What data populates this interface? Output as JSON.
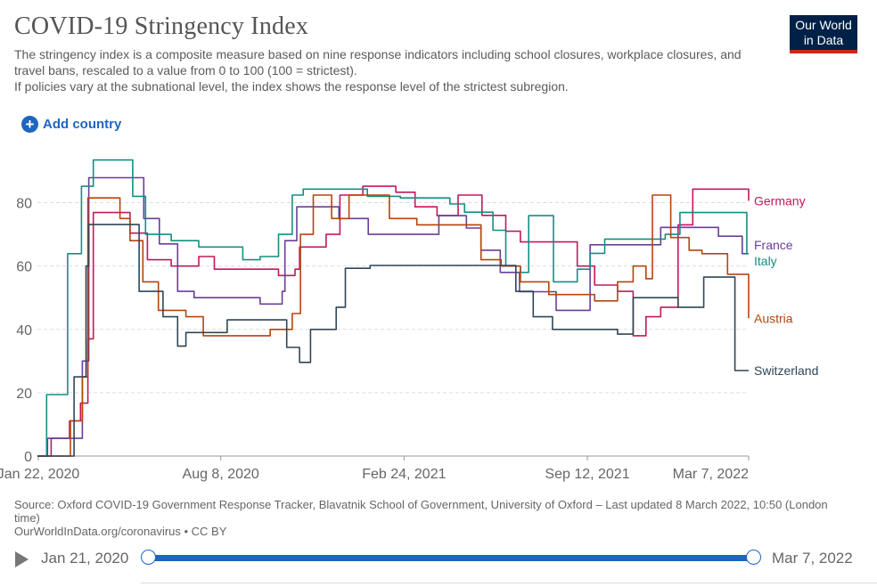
{
  "header": {
    "title": "COVID-19 Stringency Index",
    "subtitle_line1": "The stringency index is a composite measure based on nine response indicators including school closures, workplace closures, and travel bans, rescaled to a value from 0 to 100 (100 = strictest).",
    "subtitle_line2": "If policies vary at the subnational level, the index shows the response level of the strictest subregion.",
    "logo_line1": "Our World",
    "logo_line2": "in Data"
  },
  "controls": {
    "add_country_label": "Add country"
  },
  "colors": {
    "Germany": "#c2185b",
    "France": "#6a3d9a",
    "Italy": "#148f84",
    "Austria": "#b5450b",
    "Switzerland": "#2f4658",
    "grid": "#dddddd",
    "accent": "#1d65c0"
  },
  "chart_data": {
    "type": "line",
    "title": "COVID-19 Stringency Index",
    "xlabel": "",
    "ylabel": "",
    "xlim": [
      "2020-01-21",
      "2022-03-07"
    ],
    "ylim": [
      0,
      90
    ],
    "yticks": [
      0,
      20,
      40,
      60,
      80
    ],
    "xticks": [
      "Jan 22, 2020",
      "Aug 8, 2020",
      "Feb 24, 2021",
      "Sep 12, 2021",
      "Mar 7, 2022"
    ],
    "xtick_dates": [
      "2020-01-22",
      "2020-08-08",
      "2021-02-24",
      "2021-09-12",
      "2022-03-07"
    ],
    "grid": true,
    "series": [
      {
        "name": "Germany",
        "points": [
          [
            "2020-01-21",
            0
          ],
          [
            "2020-02-05",
            5.6
          ],
          [
            "2020-02-25",
            11.1
          ],
          [
            "2020-03-08",
            16.7
          ],
          [
            "2020-03-16",
            37
          ],
          [
            "2020-03-22",
            76.9
          ],
          [
            "2020-04-20",
            76.9
          ],
          [
            "2020-05-01",
            70.4
          ],
          [
            "2020-05-20",
            62
          ],
          [
            "2020-06-15",
            60
          ],
          [
            "2020-07-15",
            63
          ],
          [
            "2020-08-01",
            59
          ],
          [
            "2020-09-15",
            59
          ],
          [
            "2020-10-10",
            57
          ],
          [
            "2020-10-28",
            59
          ],
          [
            "2020-11-02",
            66
          ],
          [
            "2020-12-01",
            70
          ],
          [
            "2020-12-16",
            82.4
          ],
          [
            "2021-01-10",
            85.2
          ],
          [
            "2021-02-15",
            83.3
          ],
          [
            "2021-03-08",
            78.7
          ],
          [
            "2021-04-01",
            75.9
          ],
          [
            "2021-04-24",
            82.4
          ],
          [
            "2021-05-20",
            76
          ],
          [
            "2021-06-15",
            71
          ],
          [
            "2021-07-01",
            67.6
          ],
          [
            "2021-07-30",
            67.6
          ],
          [
            "2021-09-01",
            60
          ],
          [
            "2021-09-20",
            54
          ],
          [
            "2021-10-15",
            52
          ],
          [
            "2021-11-01",
            38
          ],
          [
            "2021-11-15",
            44
          ],
          [
            "2021-12-01",
            47
          ],
          [
            "2021-12-20",
            73
          ],
          [
            "2022-01-05",
            84.3
          ],
          [
            "2022-03-01",
            84.3
          ],
          [
            "2022-03-07",
            80.6
          ]
        ]
      },
      {
        "name": "France",
        "points": [
          [
            "2020-01-21",
            0
          ],
          [
            "2020-02-01",
            5.6
          ],
          [
            "2020-03-01",
            5.6
          ],
          [
            "2020-03-10",
            30
          ],
          [
            "2020-03-17",
            87.9
          ],
          [
            "2020-05-11",
            87.9
          ],
          [
            "2020-05-16",
            75
          ],
          [
            "2020-06-02",
            67
          ],
          [
            "2020-06-22",
            52
          ],
          [
            "2020-07-10",
            50
          ],
          [
            "2020-09-01",
            50
          ],
          [
            "2020-09-20",
            48
          ],
          [
            "2020-10-14",
            52
          ],
          [
            "2020-10-17",
            68
          ],
          [
            "2020-10-30",
            78.7
          ],
          [
            "2020-12-15",
            75
          ],
          [
            "2021-01-16",
            70
          ],
          [
            "2021-03-20",
            70
          ],
          [
            "2021-04-03",
            75.9
          ],
          [
            "2021-05-03",
            72
          ],
          [
            "2021-05-19",
            65
          ],
          [
            "2021-06-09",
            58
          ],
          [
            "2021-06-30",
            51.9
          ],
          [
            "2021-08-09",
            46
          ],
          [
            "2021-09-15",
            66.7
          ],
          [
            "2021-11-15",
            66.7
          ],
          [
            "2021-12-01",
            72.2
          ],
          [
            "2022-01-10",
            72.2
          ],
          [
            "2022-02-02",
            69.4
          ],
          [
            "2022-02-28",
            63.9
          ],
          [
            "2022-03-07",
            63.9
          ]
        ]
      },
      {
        "name": "Italy",
        "points": [
          [
            "2020-01-21",
            0
          ],
          [
            "2020-01-31",
            19.4
          ],
          [
            "2020-02-21",
            19.4
          ],
          [
            "2020-02-23",
            63.9
          ],
          [
            "2020-03-05",
            63.9
          ],
          [
            "2020-03-09",
            85.2
          ],
          [
            "2020-03-22",
            93.5
          ],
          [
            "2020-05-04",
            93.5
          ],
          [
            "2020-05-04",
            82
          ],
          [
            "2020-05-18",
            70
          ],
          [
            "2020-06-15",
            68
          ],
          [
            "2020-07-15",
            66
          ],
          [
            "2020-08-15",
            66
          ],
          [
            "2020-09-01",
            62
          ],
          [
            "2020-09-20",
            63
          ],
          [
            "2020-10-10",
            70
          ],
          [
            "2020-10-25",
            82.4
          ],
          [
            "2020-11-06",
            84.3
          ],
          [
            "2020-12-24",
            84.3
          ],
          [
            "2021-01-15",
            82
          ],
          [
            "2021-02-20",
            81.5
          ],
          [
            "2021-04-15",
            79.6
          ],
          [
            "2021-05-01",
            77
          ],
          [
            "2021-06-01",
            71.3
          ],
          [
            "2021-06-15",
            60
          ],
          [
            "2021-07-01",
            58
          ],
          [
            "2021-07-10",
            75.9
          ],
          [
            "2021-08-01",
            75.9
          ],
          [
            "2021-08-06",
            55
          ],
          [
            "2021-09-01",
            59
          ],
          [
            "2021-09-15",
            64
          ],
          [
            "2021-10-01",
            68.5
          ],
          [
            "2021-10-20",
            68.5
          ],
          [
            "2021-12-06",
            70
          ],
          [
            "2021-12-22",
            76.9
          ],
          [
            "2022-02-28",
            76.9
          ],
          [
            "2022-03-05",
            63.9
          ],
          [
            "2022-03-07",
            63.9
          ]
        ]
      },
      {
        "name": "Austria",
        "points": [
          [
            "2020-01-21",
            0
          ],
          [
            "2020-02-26",
            11.1
          ],
          [
            "2020-03-10",
            25
          ],
          [
            "2020-03-16",
            81.5
          ],
          [
            "2020-04-14",
            81.5
          ],
          [
            "2020-04-20",
            75
          ],
          [
            "2020-05-01",
            68
          ],
          [
            "2020-05-15",
            55
          ],
          [
            "2020-06-01",
            46
          ],
          [
            "2020-07-01",
            44
          ],
          [
            "2020-07-20",
            38
          ],
          [
            "2020-09-15",
            38
          ],
          [
            "2020-10-01",
            40
          ],
          [
            "2020-10-25",
            45
          ],
          [
            "2020-11-03",
            70
          ],
          [
            "2020-11-17",
            82.4
          ],
          [
            "2020-12-07",
            75
          ],
          [
            "2020-12-26",
            82.4
          ],
          [
            "2021-02-08",
            75
          ],
          [
            "2021-03-10",
            73
          ],
          [
            "2021-05-19",
            62
          ],
          [
            "2021-06-10",
            60
          ],
          [
            "2021-07-01",
            55
          ],
          [
            "2021-08-01",
            51
          ],
          [
            "2021-08-25",
            51
          ],
          [
            "2021-09-20",
            49
          ],
          [
            "2021-10-15",
            55
          ],
          [
            "2021-11-01",
            60
          ],
          [
            "2021-11-15",
            56
          ],
          [
            "2021-11-22",
            82.4
          ],
          [
            "2021-12-12",
            69
          ],
          [
            "2022-01-01",
            65
          ],
          [
            "2022-01-15",
            63.9
          ],
          [
            "2022-02-12",
            57.4
          ],
          [
            "2022-03-05",
            57.4
          ],
          [
            "2022-03-07",
            43.5
          ]
        ]
      },
      {
        "name": "Switzerland",
        "points": [
          [
            "2020-01-21",
            0
          ],
          [
            "2020-03-01",
            25
          ],
          [
            "2020-03-14",
            60
          ],
          [
            "2020-03-17",
            73.1
          ],
          [
            "2020-04-27",
            73.1
          ],
          [
            "2020-05-11",
            52
          ],
          [
            "2020-06-06",
            44
          ],
          [
            "2020-06-22",
            34.7
          ],
          [
            "2020-07-01",
            39
          ],
          [
            "2020-08-15",
            43
          ],
          [
            "2020-09-28",
            43
          ],
          [
            "2020-10-19",
            34.3
          ],
          [
            "2020-11-02",
            29.6
          ],
          [
            "2020-11-14",
            40
          ],
          [
            "2020-12-12",
            47
          ],
          [
            "2020-12-22",
            59.3
          ],
          [
            "2021-01-18",
            60.2
          ],
          [
            "2021-05-31",
            60.2
          ],
          [
            "2021-06-26",
            52
          ],
          [
            "2021-07-15",
            44
          ],
          [
            "2021-08-05",
            40
          ],
          [
            "2021-09-13",
            40
          ],
          [
            "2021-10-15",
            38.5
          ],
          [
            "2021-11-01",
            50
          ],
          [
            "2021-12-01",
            50
          ],
          [
            "2021-12-20",
            47
          ],
          [
            "2022-01-17",
            56.5
          ],
          [
            "2022-02-17",
            56.5
          ],
          [
            "2022-02-20",
            27
          ],
          [
            "2022-03-07",
            27
          ]
        ]
      }
    ]
  },
  "footer": {
    "source_text": "Source: Oxford COVID-19 Government Response Tracker, Blavatnik School of Government, University of Oxford – Last updated 8 March 2022, 10:50 (London time)",
    "url_text": "OurWorldInData.org/coronavirus • CC BY"
  },
  "timeline": {
    "start_label": "Jan 21, 2020",
    "end_label": "Mar 7, 2022"
  }
}
